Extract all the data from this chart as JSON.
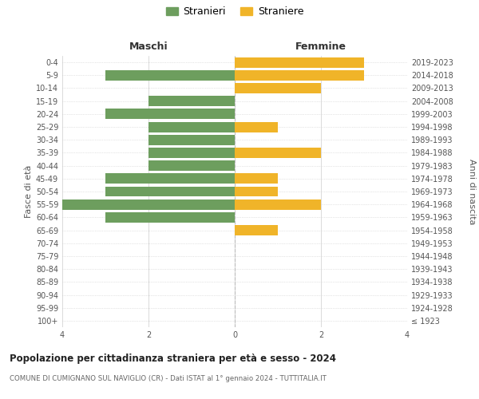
{
  "age_groups": [
    "100+",
    "95-99",
    "90-94",
    "85-89",
    "80-84",
    "75-79",
    "70-74",
    "65-69",
    "60-64",
    "55-59",
    "50-54",
    "45-49",
    "40-44",
    "35-39",
    "30-34",
    "25-29",
    "20-24",
    "15-19",
    "10-14",
    "5-9",
    "0-4"
  ],
  "birth_years": [
    "≤ 1923",
    "1924-1928",
    "1929-1933",
    "1934-1938",
    "1939-1943",
    "1944-1948",
    "1949-1953",
    "1954-1958",
    "1959-1963",
    "1964-1968",
    "1969-1973",
    "1974-1978",
    "1979-1983",
    "1984-1988",
    "1989-1993",
    "1994-1998",
    "1999-2003",
    "2004-2008",
    "2009-2013",
    "2014-2018",
    "2019-2023"
  ],
  "maschi": [
    0,
    0,
    0,
    0,
    0,
    0,
    0,
    0,
    3,
    4,
    3,
    3,
    2,
    2,
    2,
    2,
    3,
    2,
    0,
    3,
    0
  ],
  "femmine": [
    0,
    0,
    0,
    0,
    0,
    0,
    0,
    1,
    0,
    2,
    1,
    1,
    0,
    2,
    0,
    1,
    0,
    0,
    2,
    3,
    3
  ],
  "male_color": "#6d9e5e",
  "female_color": "#f0b429",
  "background_color": "#ffffff",
  "grid_color": "#cccccc",
  "title": "Popolazione per cittadinanza straniera per età e sesso - 2024",
  "subtitle": "COMUNE DI CUMIGNANO SUL NAVIGLIO (CR) - Dati ISTAT al 1° gennaio 2024 - TUTTITALIA.IT",
  "xlabel_left": "Maschi",
  "xlabel_right": "Femmine",
  "ylabel_left": "Fasce di età",
  "ylabel_right": "Anni di nascita",
  "legend_stranieri": "Stranieri",
  "legend_straniere": "Straniere",
  "xlim": 4,
  "bar_height": 0.8
}
